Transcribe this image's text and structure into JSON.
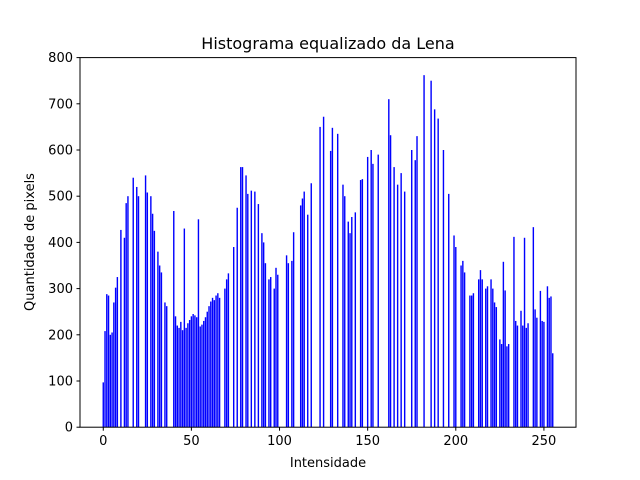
{
  "chart_data": {
    "type": "bar",
    "title": "Histograma equalizado da Lena",
    "xlabel": "Intensidade",
    "ylabel": "Quantidade de pixels",
    "color": "#0000ff",
    "values": [
      97,
      208,
      288,
      285,
      200,
      205,
      270,
      302,
      325,
      0,
      427,
      0,
      410,
      485,
      500,
      0,
      0,
      540,
      0,
      520,
      500,
      0,
      0,
      0,
      545,
      508,
      0,
      500,
      462,
      425,
      0,
      380,
      350,
      335,
      0,
      270,
      262,
      0,
      0,
      0,
      468,
      240,
      220,
      215,
      228,
      210,
      430,
      215,
      225,
      232,
      240,
      245,
      242,
      238,
      450,
      218,
      222,
      230,
      238,
      250,
      262,
      272,
      280,
      275,
      285,
      290,
      280,
      0,
      0,
      300,
      320,
      333,
      0,
      0,
      390,
      0,
      475,
      0,
      563,
      563,
      0,
      545,
      505,
      0,
      512,
      0,
      510,
      0,
      483,
      0,
      420,
      400,
      355,
      0,
      320,
      325,
      0,
      300,
      345,
      330,
      0,
      0,
      0,
      0,
      372,
      355,
      0,
      360,
      422,
      0,
      0,
      0,
      480,
      495,
      510,
      0,
      460,
      0,
      528,
      0,
      0,
      0,
      0,
      650,
      0,
      672,
      0,
      0,
      0,
      598,
      648,
      0,
      0,
      635,
      0,
      0,
      525,
      500,
      0,
      445,
      420,
      455,
      0,
      465,
      0,
      0,
      535,
      537,
      0,
      0,
      585,
      0,
      600,
      570,
      0,
      0,
      590,
      0,
      0,
      0,
      0,
      0,
      710,
      632,
      0,
      563,
      0,
      525,
      0,
      550,
      0,
      510,
      0,
      0,
      0,
      600,
      0,
      578,
      630,
      0,
      0,
      0,
      762,
      0,
      0,
      0,
      750,
      0,
      688,
      0,
      668,
      0,
      0,
      600,
      0,
      0,
      505,
      0,
      0,
      415,
      390,
      0,
      0,
      350,
      360,
      335,
      0,
      0,
      285,
      285,
      290,
      0,
      0,
      320,
      340,
      320,
      0,
      300,
      305,
      0,
      320,
      300,
      270,
      260,
      0,
      190,
      180,
      358,
      296,
      175,
      180,
      0,
      0,
      412,
      230,
      220,
      0,
      252,
      220,
      410,
      215,
      225,
      0,
      0,
      433,
      255,
      237,
      0,
      295,
      230,
      228,
      0,
      305,
      280,
      283,
      160
    ],
    "xlim": [
      -13.2,
      268.2
    ],
    "xticks": [
      0,
      50,
      100,
      150,
      200,
      250
    ],
    "ylim": [
      0,
      800
    ],
    "yticks": [
      0,
      100,
      200,
      300,
      400,
      500,
      600,
      700,
      800
    ]
  }
}
